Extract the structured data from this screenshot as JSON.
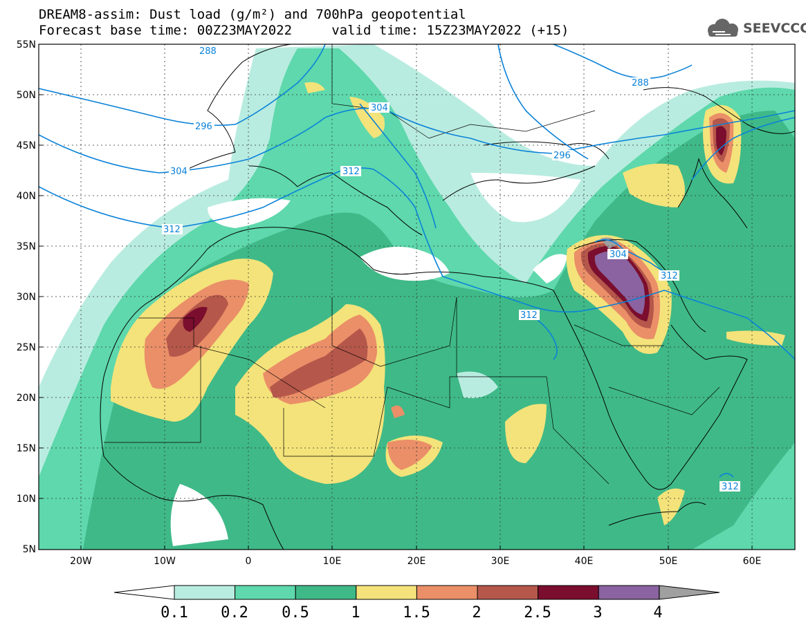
{
  "title_line1": "DREAM8-assim: Dust load (g/m²) and 700hPa geopotential",
  "title_line2": "Forecast base time: 00Z23MAY2022     valid time: 15Z23MAY2022 (+15)",
  "logo_text": "SEEVCCC",
  "lat_labels": [
    "55N",
    "50N",
    "45N",
    "40N",
    "35N",
    "30N",
    "25N",
    "20N",
    "15N",
    "10N",
    "5N"
  ],
  "lon_labels": [
    "20W",
    "10W",
    "0",
    "10E",
    "20E",
    "30E",
    "40E",
    "50E",
    "60E"
  ],
  "contour_labels": [
    "288",
    "288",
    "296",
    "296",
    "304",
    "304",
    "304",
    "312",
    "312",
    "312",
    "312",
    "312"
  ],
  "colorbar": {
    "labels": [
      "0.1",
      "0.2",
      "0.5",
      "1",
      "1.5",
      "2",
      "2.5",
      "3",
      "4"
    ],
    "colors": [
      "#b9ece0",
      "#5ed8ac",
      "#3fb988",
      "#f4e37a",
      "#ea8f68",
      "#b5574a",
      "#7b0e2e",
      "#8a63a0",
      "#a0a0a0"
    ]
  },
  "colors": {
    "land": "#ffffff",
    "contour": "#0a82d8"
  }
}
